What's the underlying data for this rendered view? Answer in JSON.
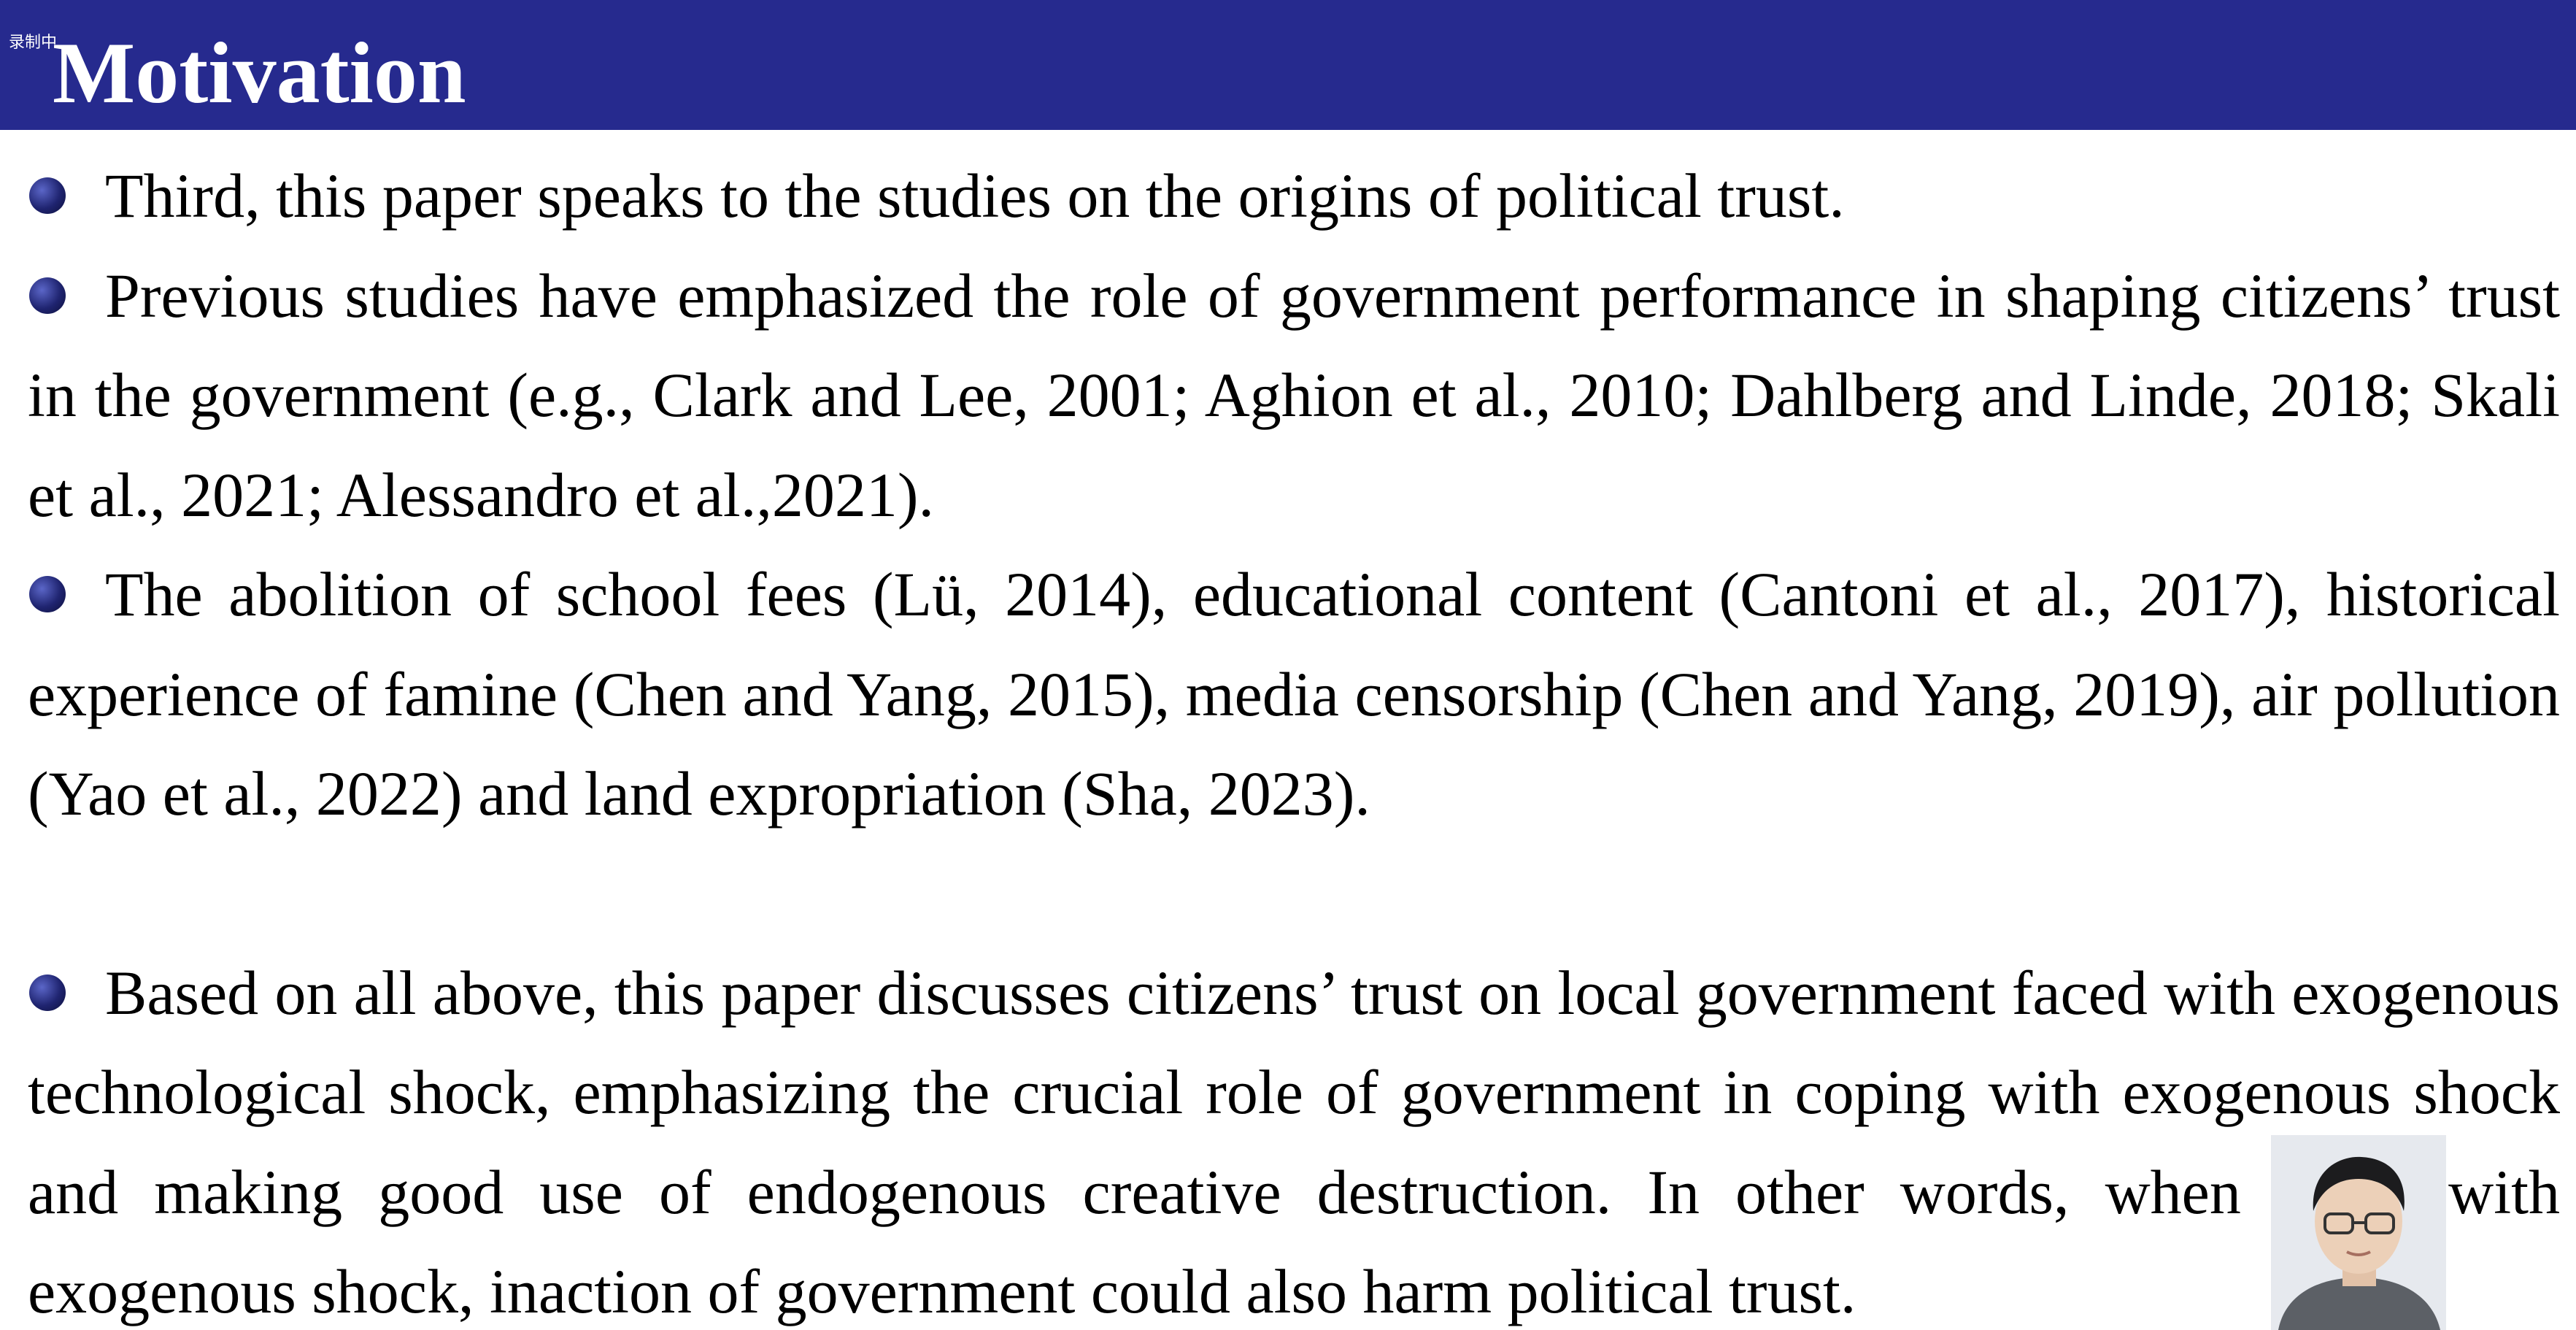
{
  "header": {
    "recording_label": "录制中",
    "title": "Motivation",
    "background_color": "#262a8e"
  },
  "bullets": [
    {
      "text": "Third, this paper speaks to the studies on the origins of political trust."
    },
    {
      "text": "Previous studies have emphasized the role of government performance in shaping citizens’ trust in the government (e.g., Clark and Lee, 2001; Aghion et al., 2010; Dahlberg and Linde, 2018; Skali et al., 2021; Alessandro et al.,2021)."
    },
    {
      "text": "The abolition of school fees (Lü, 2014), educational content (Cantoni et al., 2017), historical experience of famine (Chen and Yang, 2015), media censorship (Chen and Yang, 2019), air pollution (Yao et al., 2022) and land expropriation (Sha, 2023)."
    },
    {
      "text": "Based on all above, this paper discusses citizens’ trust on local government faced with exogenous technological shock, emphasizing the crucial role of government in coping with exogenous shock and making good use of endogenous creative destruction. In other words, when faced with exogenous shock, inaction of government could also harm political trust."
    }
  ],
  "bullet_color": "#1f2470",
  "presenter_video": {
    "icon": "presenter-webcam"
  }
}
